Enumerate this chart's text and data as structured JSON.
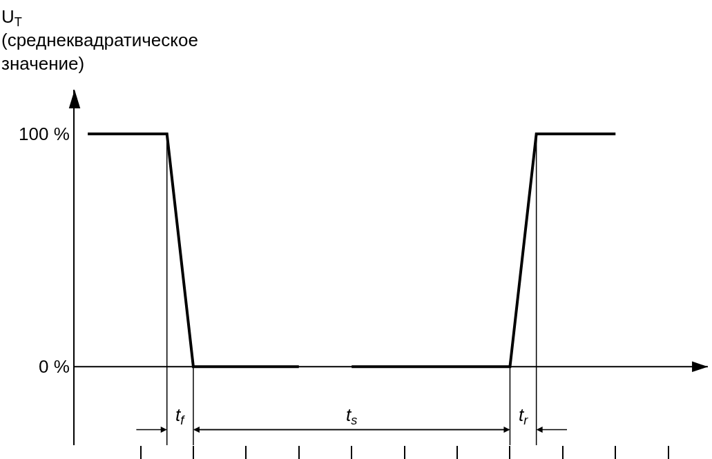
{
  "chart_data": {
    "type": "line",
    "ylabel": "U$_{T}$\n(среднеквадратическое\nзначение)",
    "categories": [
      null,
      null,
      null,
      null,
      null,
      null,
      null,
      null,
      null,
      null,
      null,
      null,
      null,
      null,
      null,
      null,
      null,
      null,
      null,
      null,
      null,
      null,
      null,
      null
    ],
    "series": [
      {
        "color": "#000000",
        "values": [
          100,
          100,
          100,
          100,
          0,
          0,
          0,
          0,
          0,
          null,
          0,
          0,
          0,
          0,
          0,
          0,
          0,
          100,
          100,
          100,
          100,
          null,
          null,
          null
        ]
      }
    ],
    "ylim": [
      -33.7,
      119
    ],
    "yticks": [
      {
        "value": 0,
        "label": "0 %"
      },
      {
        "value": 100,
        "label": "100 %"
      }
    ],
    "annotations": [
      "t$_{f}$",
      "t$_{s}$",
      "t$_{r}$"
    ],
    "marker": "none",
    "line_style": "solid"
  }
}
